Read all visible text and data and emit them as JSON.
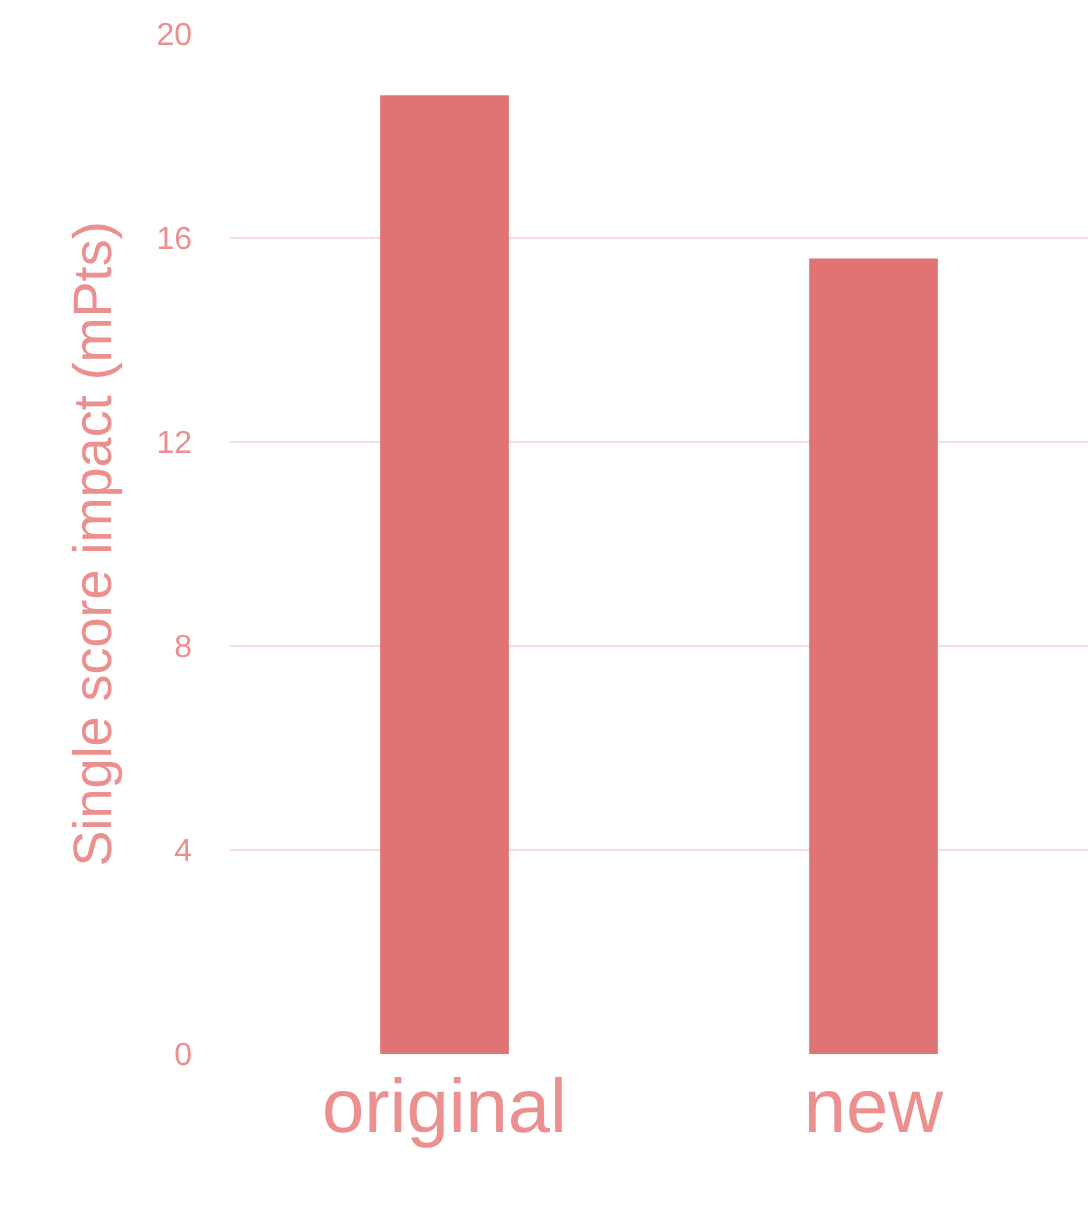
{
  "chart_data": {
    "type": "bar",
    "ylabel": "Single score impact (mPts)",
    "categories": [
      "original",
      "new"
    ],
    "values": [
      18.8,
      15.6
    ],
    "color": "#e07474",
    "ylim": [
      0,
      20
    ],
    "yticks": [
      0,
      4,
      8,
      12,
      16,
      20
    ],
    "grid": "y"
  }
}
